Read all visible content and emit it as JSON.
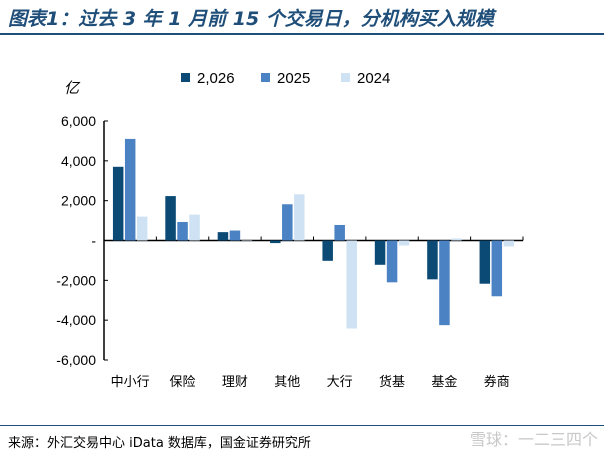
{
  "title": "图表1：过去 3 年 1 月前 15 个交易日，分机构买入规模",
  "source": "来源：外汇交易中心 iData 数据库，国金证券研究所",
  "watermark": "雪球：一二三四个",
  "chart_data": {
    "type": "bar",
    "ylabel": "亿",
    "ylim": [
      -6000,
      6000
    ],
    "yticks": [
      "6,000",
      "4,000",
      "2,000",
      "-",
      "-2,000",
      "-4,000",
      "-6,000"
    ],
    "ytick_values": [
      6000,
      4000,
      2000,
      0,
      -2000,
      -4000,
      -6000
    ],
    "categories": [
      "中小行",
      "保险",
      "理财",
      "其他",
      "大行",
      "货基",
      "基金",
      "券商"
    ],
    "legend_position": "top",
    "series": [
      {
        "name": "2,026",
        "color": "#0b4a74",
        "values": [
          3700,
          2230,
          420,
          -130,
          -1020,
          -1220,
          -1950,
          -2170
        ]
      },
      {
        "name": "2025",
        "color": "#4a82c3",
        "values": [
          5100,
          930,
          500,
          1820,
          780,
          -2100,
          -4250,
          -2800
        ]
      },
      {
        "name": "2024",
        "color": "#cfe2f3",
        "values": [
          1200,
          1300,
          0,
          2320,
          -4420,
          -250,
          100,
          -300
        ]
      }
    ]
  }
}
